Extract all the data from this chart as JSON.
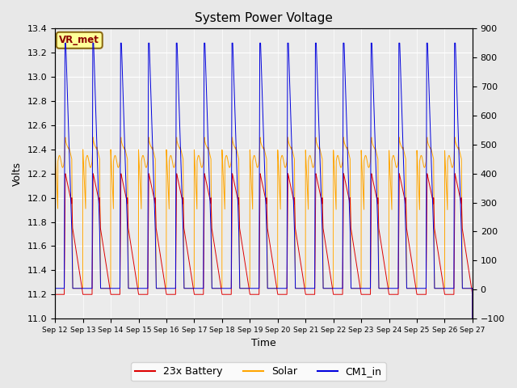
{
  "title": "System Power Voltage",
  "xlabel": "Time",
  "ylabel_left": "Volts",
  "ylim_left": [
    11.0,
    13.4
  ],
  "ylim_right": [
    -100,
    900
  ],
  "yticks_left": [
    11.0,
    11.2,
    11.4,
    11.6,
    11.8,
    12.0,
    12.2,
    12.4,
    12.6,
    12.8,
    13.0,
    13.2,
    13.4
  ],
  "yticks_right": [
    -100,
    0,
    100,
    200,
    300,
    400,
    500,
    600,
    700,
    800,
    900
  ],
  "x_tick_labels": [
    "Sep 12",
    "Sep 13",
    "Sep 14",
    "Sep 15",
    "Sep 16",
    "Sep 17",
    "Sep 18",
    "Sep 19",
    "Sep 20",
    "Sep 21",
    "Sep 22",
    "Sep 23",
    "Sep 24",
    "Sep 25",
    "Sep 26",
    "Sep 27"
  ],
  "n_days": 15,
  "color_battery": "#DD0000",
  "color_solar": "#FFA500",
  "color_cm1": "#0000DD",
  "legend_labels": [
    "23x Battery",
    "Solar",
    "CM1_in"
  ],
  "vr_met_label": "VR_met",
  "bg_color": "#E8E8E8",
  "plot_bg": "#EBEBEB"
}
